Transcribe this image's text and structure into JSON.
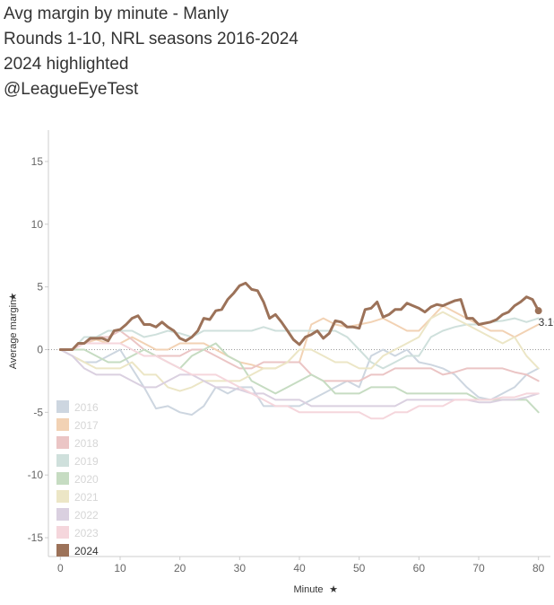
{
  "header": {
    "title": "Avg margin by minute - Manly",
    "subtitle": "Rounds 1-10, NRL seasons 2016-2024",
    "note": "2024 highlighted",
    "handle": "@LeagueEyeTest"
  },
  "chart_data": {
    "type": "line",
    "title": "Avg margin by minute - Manly",
    "xlabel": "Minute",
    "ylabel": "Average margin",
    "xlim": [
      -2,
      82
    ],
    "ylim": [
      -16.5,
      17.5
    ],
    "xticks": [
      0,
      10,
      20,
      30,
      40,
      50,
      60,
      70,
      80
    ],
    "yticks": [
      -15,
      -10,
      -5,
      0,
      5,
      10,
      15
    ],
    "zero_reference_line": true,
    "grid": false,
    "legend_position": "bottom-left",
    "end_label": "3.10",
    "highlight_series": "2024",
    "series": [
      {
        "name": "2016",
        "color": "#cdd6e0",
        "x": [
          0,
          2,
          4,
          6,
          8,
          10,
          12,
          14,
          16,
          18,
          20,
          22,
          24,
          26,
          28,
          30,
          32,
          34,
          36,
          38,
          40,
          42,
          44,
          46,
          48,
          50,
          52,
          54,
          56,
          58,
          60,
          62,
          64,
          66,
          68,
          70,
          72,
          74,
          76,
          78,
          80
        ],
        "values": [
          0,
          -0.5,
          -1,
          -1,
          -0.5,
          0,
          -1.5,
          -3,
          -4.7,
          -4.5,
          -5,
          -5.2,
          -4.5,
          -3,
          -3.5,
          -3,
          -3,
          -4.5,
          -4.5,
          -4.5,
          -4.5,
          -4,
          -3.5,
          -3,
          -2.5,
          -3,
          -0.5,
          0,
          -0.5,
          0,
          -1,
          -1.2,
          -1.5,
          -2,
          -3,
          -3.8,
          -4,
          -3.5,
          -3,
          -2,
          -1.5
        ]
      },
      {
        "name": "2017",
        "color": "#f2d2b4",
        "x": [
          0,
          2,
          4,
          6,
          8,
          10,
          12,
          14,
          16,
          18,
          20,
          22,
          24,
          26,
          28,
          30,
          32,
          34,
          36,
          38,
          40,
          42,
          44,
          46,
          48,
          50,
          52,
          54,
          56,
          58,
          60,
          62,
          64,
          66,
          68,
          70,
          72,
          74,
          76,
          78,
          80
        ],
        "values": [
          0,
          0,
          0.5,
          0.8,
          0.5,
          0.5,
          1,
          0.5,
          0,
          0,
          0.5,
          0.5,
          0.5,
          0,
          -0.5,
          -1,
          -1.2,
          -1.5,
          -1.5,
          -1,
          -1,
          2,
          2.5,
          2,
          1.8,
          2,
          2.2,
          2.5,
          2,
          1.5,
          1.5,
          2.5,
          3.5,
          3,
          2.5,
          2,
          1.5,
          1.5,
          1,
          1.5,
          2
        ]
      },
      {
        "name": "2018",
        "color": "#ebc5c5",
        "x": [
          0,
          2,
          4,
          6,
          8,
          10,
          12,
          14,
          16,
          18,
          20,
          22,
          24,
          26,
          28,
          30,
          32,
          34,
          36,
          38,
          40,
          42,
          44,
          46,
          48,
          50,
          52,
          54,
          56,
          58,
          60,
          62,
          64,
          66,
          68,
          70,
          72,
          74,
          76,
          78,
          80
        ],
        "values": [
          0,
          0,
          0.5,
          1,
          1,
          1.5,
          0.8,
          0,
          -0.5,
          -0.5,
          -0.5,
          0,
          0,
          -0.5,
          -1,
          -1.5,
          -1.5,
          -1,
          -1,
          -1,
          -1,
          -2,
          -2.5,
          -2.5,
          -2.5,
          -2.5,
          -2,
          -2,
          -1.5,
          -1.5,
          -1.5,
          -1.5,
          -2,
          -1.8,
          -1.5,
          -1.5,
          -1.5,
          -1.5,
          -1.8,
          -2,
          -2.5
        ]
      },
      {
        "name": "2019",
        "color": "#cfe0dc",
        "x": [
          0,
          2,
          4,
          6,
          8,
          10,
          12,
          14,
          16,
          18,
          20,
          22,
          24,
          26,
          28,
          30,
          32,
          34,
          36,
          38,
          40,
          42,
          44,
          46,
          48,
          50,
          52,
          54,
          56,
          58,
          60,
          62,
          64,
          66,
          68,
          70,
          72,
          74,
          76,
          78,
          80
        ],
        "values": [
          0,
          0,
          1,
          1,
          1.5,
          1.5,
          1.5,
          1,
          1.2,
          1.5,
          1.3,
          1,
          1.5,
          1.5,
          1.5,
          1.5,
          1.5,
          1.8,
          1.5,
          1.5,
          1.5,
          1.5,
          1.5,
          1.5,
          1,
          0,
          -1,
          -1.5,
          -1,
          -0.5,
          -0.5,
          1,
          1.5,
          1.8,
          2,
          2,
          2.2,
          2.3,
          2.5,
          2.2,
          2.5
        ]
      },
      {
        "name": "2020",
        "color": "#c6dcc2",
        "x": [
          0,
          2,
          4,
          6,
          8,
          10,
          12,
          14,
          16,
          18,
          20,
          22,
          24,
          26,
          28,
          30,
          32,
          34,
          36,
          38,
          40,
          42,
          44,
          46,
          48,
          50,
          52,
          54,
          56,
          58,
          60,
          62,
          64,
          66,
          68,
          70,
          72,
          74,
          76,
          78,
          80
        ],
        "values": [
          0,
          0,
          0,
          -0.5,
          -1,
          -1,
          -0.5,
          0,
          -0.5,
          -1,
          -1.5,
          -0.5,
          0,
          0.5,
          -0.5,
          -1,
          -2.5,
          -3,
          -3.5,
          -3,
          -2.5,
          -2,
          -2.5,
          -3.5,
          -3.5,
          -3.5,
          -3,
          -3,
          -3,
          -3.5,
          -3.5,
          -3.5,
          -3.5,
          -3.5,
          -3.5,
          -4,
          -4,
          -4,
          -4,
          -4,
          -5
        ]
      },
      {
        "name": "2021",
        "color": "#ece6c6",
        "x": [
          0,
          2,
          4,
          6,
          8,
          10,
          12,
          14,
          16,
          18,
          20,
          22,
          24,
          26,
          28,
          30,
          32,
          34,
          36,
          38,
          40,
          42,
          44,
          46,
          48,
          50,
          52,
          54,
          56,
          58,
          60,
          62,
          64,
          66,
          68,
          70,
          72,
          74,
          76,
          78,
          80
        ],
        "values": [
          0,
          -0.5,
          -1,
          -1.5,
          -1.5,
          -1.5,
          -1,
          -2,
          -2,
          -3,
          -3.3,
          -3,
          -2.5,
          -2.5,
          -2.5,
          -2.5,
          -2,
          -1.5,
          -1.5,
          -1,
          0,
          0,
          -0.5,
          -1,
          -1,
          -1.5,
          -1.5,
          -0.5,
          0,
          0.5,
          1,
          2.5,
          3,
          2.5,
          2,
          1.5,
          1,
          0.5,
          1,
          -0.5,
          -1.5
        ]
      },
      {
        "name": "2022",
        "color": "#dad0e0",
        "x": [
          0,
          2,
          4,
          6,
          8,
          10,
          12,
          14,
          16,
          18,
          20,
          22,
          24,
          26,
          28,
          30,
          32,
          34,
          36,
          38,
          40,
          42,
          44,
          46,
          48,
          50,
          52,
          54,
          56,
          58,
          60,
          62,
          64,
          66,
          68,
          70,
          72,
          74,
          76,
          78,
          80
        ],
        "values": [
          0,
          -0.5,
          -1.5,
          -2,
          -2,
          -2,
          -2.5,
          -3,
          -3,
          -2.5,
          -2,
          -2,
          -2.5,
          -3,
          -3,
          -3.2,
          -3.5,
          -3.5,
          -4,
          -4,
          -4,
          -4.5,
          -4.5,
          -4.5,
          -4.5,
          -4.5,
          -4.5,
          -4.5,
          -4.5,
          -4,
          -4,
          -4,
          -4,
          -4,
          -4,
          -4.2,
          -4.2,
          -4,
          -4,
          -3.8,
          -3.5
        ]
      },
      {
        "name": "2023",
        "color": "#f5d6dc",
        "x": [
          0,
          2,
          4,
          6,
          8,
          10,
          12,
          14,
          16,
          18,
          20,
          22,
          24,
          26,
          28,
          30,
          32,
          34,
          36,
          38,
          40,
          42,
          44,
          46,
          48,
          50,
          52,
          54,
          56,
          58,
          60,
          62,
          64,
          66,
          68,
          70,
          72,
          74,
          76,
          78,
          80
        ],
        "values": [
          0,
          0,
          0.5,
          0.5,
          0.5,
          0.5,
          0,
          -0.5,
          -0.5,
          -1,
          -1.5,
          -2,
          -2,
          -2,
          -2.5,
          -3,
          -3.5,
          -4,
          -4.5,
          -4.5,
          -5,
          -5,
          -5,
          -5,
          -5,
          -5,
          -5.5,
          -5.5,
          -5,
          -5,
          -4.5,
          -4.5,
          -4.5,
          -4,
          -4,
          -4,
          -4,
          -3.8,
          -3.8,
          -3.5,
          -3.5
        ]
      },
      {
        "name": "2024",
        "color": "#9c7259",
        "x": [
          0,
          1,
          2,
          3,
          4,
          5,
          6,
          7,
          8,
          9,
          10,
          11,
          12,
          13,
          14,
          15,
          16,
          17,
          18,
          19,
          20,
          21,
          22,
          23,
          24,
          25,
          26,
          27,
          28,
          29,
          30,
          31,
          32,
          33,
          34,
          35,
          36,
          37,
          38,
          39,
          40,
          41,
          42,
          43,
          44,
          45,
          46,
          47,
          48,
          49,
          50,
          51,
          52,
          53,
          54,
          55,
          56,
          57,
          58,
          59,
          60,
          61,
          62,
          63,
          64,
          65,
          66,
          67,
          68,
          69,
          70,
          71,
          72,
          73,
          74,
          75,
          76,
          77,
          78,
          79,
          80
        ],
        "values": [
          0,
          0,
          0,
          0.5,
          0.5,
          0.9,
          0.9,
          0.9,
          0.7,
          1.5,
          1.6,
          2,
          2.5,
          2.7,
          2,
          2,
          1.8,
          2.2,
          1.8,
          1.5,
          0.9,
          0.7,
          1,
          1.5,
          2.5,
          2.4,
          3.1,
          3.2,
          4,
          4.5,
          5.1,
          5.3,
          4.8,
          4.7,
          3.8,
          2.5,
          2.8,
          2.2,
          1.5,
          0.8,
          0.4,
          1,
          1.2,
          1.5,
          0.9,
          1.3,
          2.3,
          2.2,
          1.8,
          1.8,
          1.7,
          3.2,
          3.3,
          3.8,
          2.6,
          2.8,
          3.2,
          3.2,
          3.7,
          3.5,
          3.3,
          3,
          3.4,
          3.6,
          3.5,
          3.7,
          3.9,
          4,
          2.5,
          2.5,
          2,
          2.1,
          2.2,
          2.4,
          2.8,
          3,
          3.5,
          3.8,
          4.2,
          4,
          3.1
        ]
      }
    ]
  }
}
